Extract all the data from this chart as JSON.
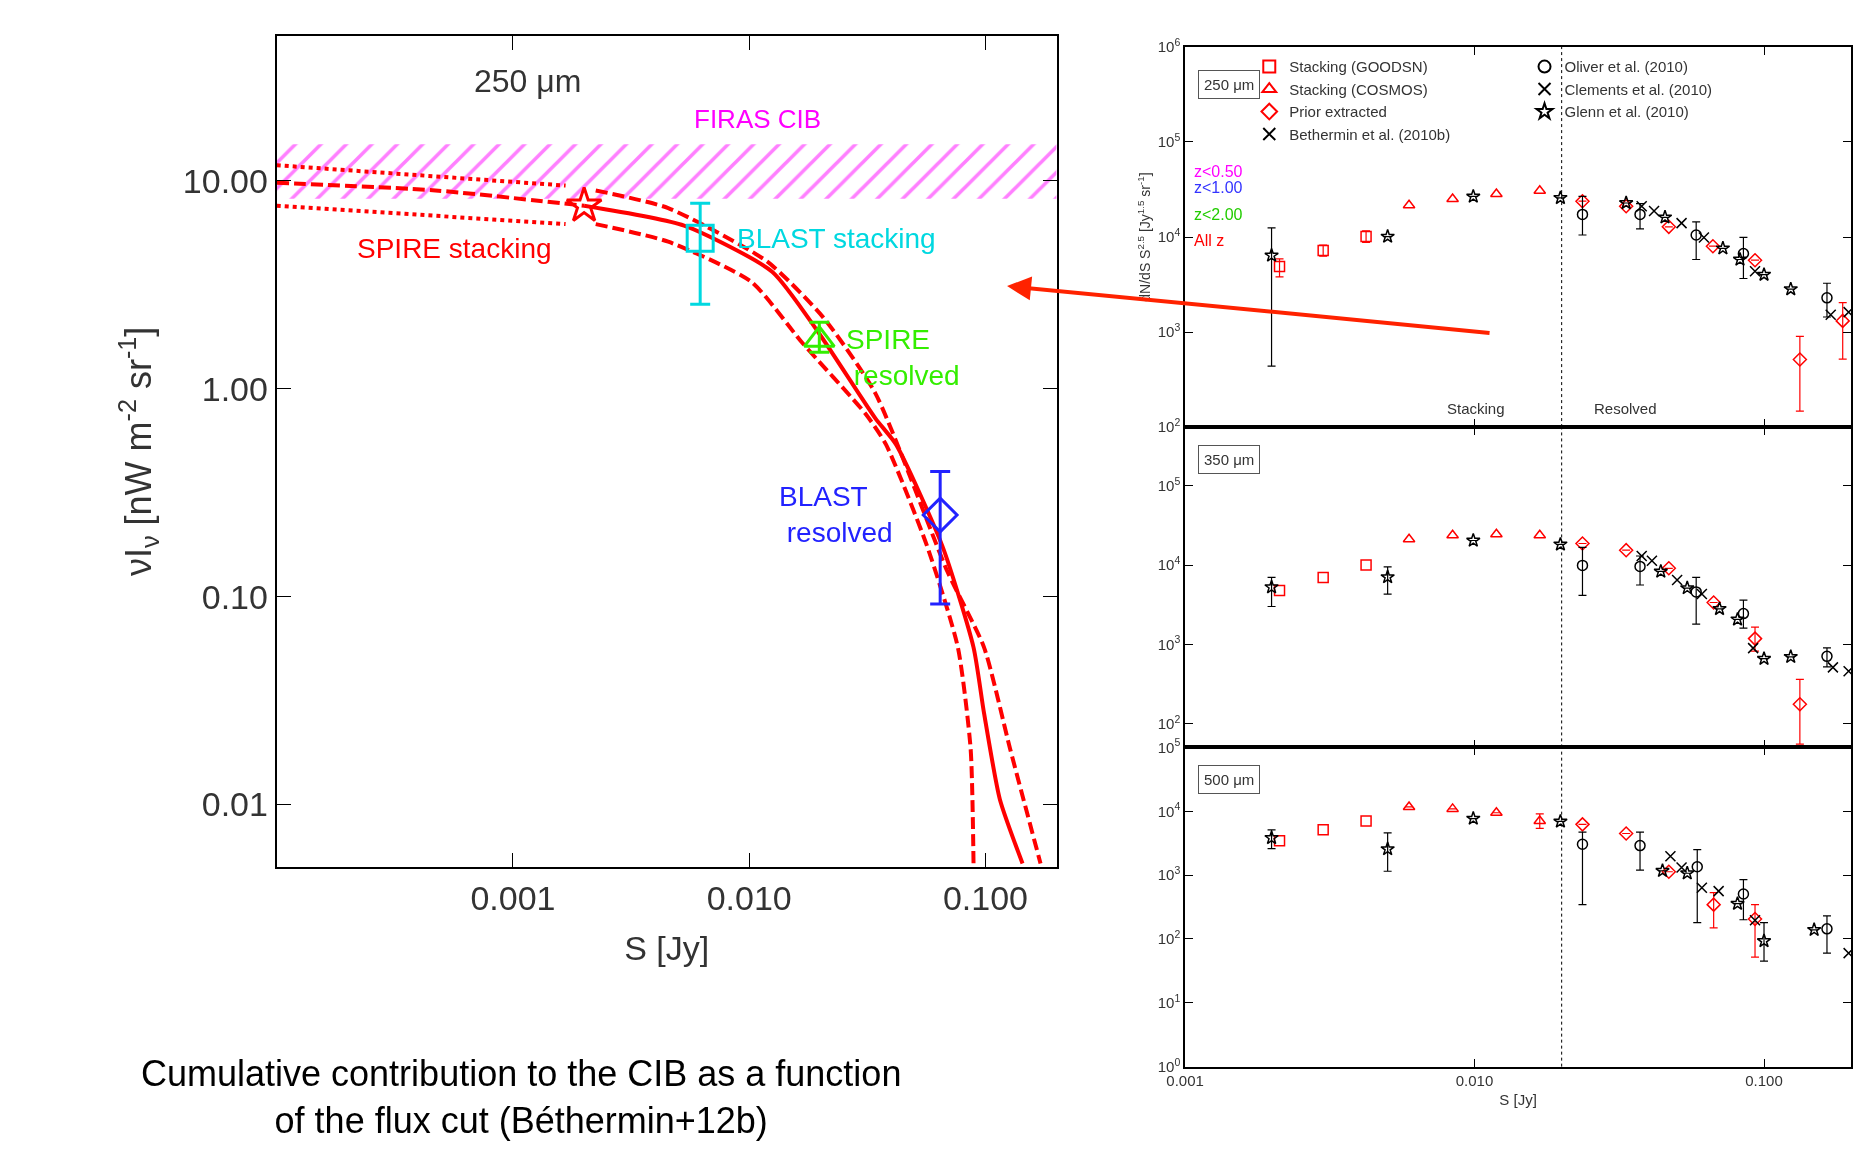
{
  "chart_data": [
    {
      "type": "scatter",
      "xlabel": "S [Jy]",
      "ylabel": "νI$_{ν}$ [nW m$^{-2}$ sr$^{-1}$]",
      "log": "xy",
      "xlim": [
        0.0001,
        0.2
      ],
      "ylim": [
        0.005,
        50
      ],
      "xticks": [
        {
          "value": 0.001,
          "label": "0.001"
        },
        {
          "value": 0.01,
          "label": "0.010"
        },
        {
          "value": 0.1,
          "label": "0.100"
        }
      ],
      "yticks": [
        {
          "value": 0.01,
          "label": "0.01"
        },
        {
          "value": 0.1,
          "label": "0.10"
        },
        {
          "value": 1,
          "label": "1.00"
        },
        {
          "value": 10,
          "label": "10.00"
        }
      ],
      "bands": [
        {
          "axis": "y",
          "from": 8.2,
          "to": 15,
          "label": "FIRAS CIB",
          "color": "#ff00ff"
        }
      ],
      "annotations": [
        "250 μm",
        "Cumulative contribution to the CIB as a function of the flux cut (Béthermin+12b)"
      ],
      "legend": false,
      "series": [
        {
          "type": "line",
          "color": "#ff0000",
          "line_style": "solid",
          "x": [
            0.002,
            0.0053,
            0.0125,
            0.0196,
            0.0342,
            0.0418,
            0.0657,
            0.089,
            0.0986,
            0.115,
            0.1435
          ],
          "values": [
            7.6,
            6.1,
            3.66,
            1.87,
            0.72,
            0.54,
            0.175,
            0.057,
            0.0275,
            0.0106,
            0.0052
          ]
        },
        {
          "type": "line",
          "color": "#ff0000",
          "line_style": "dashed",
          "x": [
            0.0001,
            0.00047,
            0.002
          ],
          "values": [
            9.8,
            9.0,
            7.6
          ]
        },
        {
          "type": "line",
          "color": "#ff0000",
          "line_style": "dotted",
          "x": [
            0.0001,
            0.00167
          ],
          "values": [
            11.9,
            9.5
          ]
        },
        {
          "type": "line",
          "color": "#ff0000",
          "line_style": "dotted",
          "x": [
            0.0001,
            0.00167
          ],
          "values": [
            7.6,
            6.2
          ]
        },
        {
          "type": "line",
          "color": "#ff0000",
          "line_style": "dashed",
          "x": [
            0.00224,
            0.00454,
            0.0119,
            0.0206,
            0.0342,
            0.069,
            0.0986,
            0.127,
            0.171
          ],
          "values": [
            9.0,
            7.4,
            4.1,
            2.2,
            0.95,
            0.132,
            0.057,
            0.0186,
            0.0052
          ]
        },
        {
          "type": "line",
          "color": "#ff0000",
          "line_style": "dashed",
          "x": [
            0.00224,
            0.00454,
            0.0102,
            0.0168,
            0.031,
            0.0379,
            0.0566,
            0.0764,
            0.0865,
            0.089
          ],
          "values": [
            6.2,
            5.1,
            3.27,
            1.66,
            0.76,
            0.54,
            0.175,
            0.057,
            0.0186,
            0.0052
          ]
        },
        {
          "name": "SPIRE stacking",
          "marker": "star",
          "color": "#ff0000",
          "x": [
            0.002
          ],
          "values": [
            7.6
          ]
        },
        {
          "name": "BLAST stacking",
          "marker": "square",
          "color": "#00d8e0",
          "x": [
            0.0062
          ],
          "values": [
            5.3
          ],
          "errors": [
            [
              2.55,
              7.8
            ]
          ]
        },
        {
          "name": "SPIRE resolved",
          "marker": "triangle",
          "color": "#33ee00",
          "x": [
            0.0198
          ],
          "values": [
            1.72
          ],
          "errors": [
            [
              1.5,
              2.09
            ]
          ]
        },
        {
          "name": "BLAST resolved",
          "marker": "diamond",
          "color": "#2222ff",
          "x": [
            0.0643
          ],
          "values": [
            0.247
          ],
          "errors": [
            [
              0.092,
              0.4
            ]
          ]
        }
      ]
    },
    {
      "type": "scatter",
      "ylabel": "dN/dS S$^{2.5}$ [Jy$^{1.5}$ sr$^{-1}$]",
      "log": "xy",
      "xlim": [
        0.001,
        0.2
      ],
      "ylim": [
        100,
        1000000
      ],
      "tick_labels": "y",
      "xticks": [
        {
          "value": 0.001,
          "label": null
        },
        {
          "value": 0.01,
          "label": null
        },
        {
          "value": 0.1,
          "label": null
        }
      ],
      "yticks": [
        {
          "value": 100,
          "label": "10$^{2}$"
        },
        {
          "value": 1000,
          "label": "10$^{3}$"
        },
        {
          "value": 10000,
          "label": "10$^{4}$"
        },
        {
          "value": 100000,
          "label": "10$^{5}$"
        },
        {
          "value": 1000000,
          "label": "10$^{6}$"
        }
      ],
      "ref_lines": [
        {
          "axis": "x",
          "value": 0.02,
          "line_style": "dotted",
          "color": "#000000"
        }
      ],
      "annotations": [
        "250 μm",
        "Stacking",
        "Resolved"
      ],
      "legend": "top",
      "series": [
        {
          "name": "Stacking (GOODSN)",
          "marker": "square",
          "color": "#ff0000",
          "x": [
            0.00212,
            0.003,
            0.00422
          ],
          "values": [
            4900,
            7200,
            10100
          ],
          "errors": [
            [
              3800,
              5900
            ],
            [
              6300,
              8200
            ],
            [
              8800,
              11600
            ]
          ]
        },
        {
          "name": "Stacking (COSMOS)",
          "marker": "triangle",
          "color": "#ff0000",
          "x": [
            0.00594,
            0.0084,
            0.0119,
            0.0168
          ],
          "values": [
            21600,
            25100,
            28300,
            30700
          ]
        },
        {
          "name": "Prior extracted",
          "marker": "diamond",
          "color": "#ff0000",
          "x": [
            0.0236,
            0.0334,
            0.0469,
            0.0666,
            0.0931,
            0.133,
            0.187
          ],
          "values": [
            23800,
            21100,
            12800,
            8000,
            5700,
            514,
            1310
          ],
          "errors": [
            null,
            null,
            null,
            null,
            null,
            [
              147,
              900
            ],
            [
              520,
              2040
            ]
          ]
        },
        {
          "name": "Bethermin et al. (2010b)",
          "marker": "cross",
          "color": "#000000"
        },
        {
          "name": "Oliver et al. (2010)",
          "marker": "circle",
          "color": "#000000",
          "x": [
            0.0236,
            0.0373,
            0.0583,
            0.0849,
            0.165
          ],
          "values": [
            17300,
            17300,
            10500,
            6700,
            2290
          ],
          "errors": [
            [
              10500,
              26700
            ],
            [
              12200,
              22400
            ],
            [
              5800,
              14400
            ],
            [
              3660,
              9900
            ],
            [
              1440,
              3260
            ]
          ]
        },
        {
          "name": "Clements et al. (2010)",
          "marker": "cross",
          "color": "#000000",
          "x": [
            0.0378,
            0.0417,
            0.0519,
            0.062,
            0.0931,
            0.17,
            0.196
          ],
          "values": [
            21100,
            18800,
            14000,
            9900,
            4370,
            1520,
            1620
          ]
        },
        {
          "name": "Glenn et al. (2010)",
          "marker": "star",
          "color": "#000000",
          "x": [
            0.00199,
            0.00501,
            0.0099,
            0.0198,
            0.0334,
            0.0455,
            0.0721,
            0.0826,
            0.1,
            0.1237
          ],
          "values": [
            6400,
            10100,
            26700,
            25800,
            22800,
            16100,
            7600,
            5800,
            4020,
            2830
          ],
          "errors": [
            [
              437,
              12500
            ],
            null,
            null,
            null,
            null,
            null,
            null,
            null,
            null,
            null
          ]
        },
        {
          "name": "z<0.50",
          "color": "#ff00ff"
        },
        {
          "name": "z<1.00",
          "color": "#3333ff"
        },
        {
          "name": "z<2.00",
          "color": "#22cc00"
        },
        {
          "name": "All z",
          "color": "#ff0000"
        }
      ]
    },
    {
      "type": "scatter",
      "log": "xy",
      "xlim": [
        0.001,
        0.2
      ],
      "ylim": [
        50,
        550000
      ],
      "tick_labels": "y",
      "xticks": [
        {
          "value": 0.001,
          "label": null
        },
        {
          "value": 0.01,
          "label": null
        },
        {
          "value": 0.1,
          "label": null
        }
      ],
      "yticks": [
        {
          "value": 100,
          "label": "10$^{2}$"
        },
        {
          "value": 1000,
          "label": "10$^{3}$"
        },
        {
          "value": 10000,
          "label": "10$^{4}$"
        },
        {
          "value": 100000,
          "label": "10$^{5}$"
        }
      ],
      "ref_lines": [
        {
          "axis": "x",
          "value": 0.02,
          "line_style": "dotted",
          "color": "#000000"
        }
      ],
      "annotations": [
        "350 μm"
      ],
      "series": [
        {
          "marker": "square",
          "color": "#ff0000",
          "x": [
            0.00212,
            0.003,
            0.00422
          ],
          "values": [
            4780,
            6950,
            10000
          ]
        },
        {
          "marker": "triangle",
          "color": "#ff0000",
          "x": [
            0.00594,
            0.0084,
            0.0119,
            0.0168
          ],
          "values": [
            21200,
            23800,
            24400,
            23800
          ]
        },
        {
          "marker": "diamond",
          "color": "#ff0000",
          "x": [
            0.0236,
            0.0334,
            0.0469,
            0.067,
            0.0931,
            0.133
          ],
          "values": [
            18700,
            15400,
            9100,
            3370,
            1180,
            175
          ],
          "errors": [
            null,
            null,
            null,
            null,
            [
              820,
              1650
            ],
            [
              55,
              361
            ]
          ]
        },
        {
          "marker": "circle",
          "color": "#000000",
          "x": [
            0.0236,
            0.0373,
            0.0583,
            0.0849,
            0.165
          ],
          "values": [
            9900,
            9600,
            4580,
            2440,
            705
          ],
          "errors": [
            [
              4150,
              16700
            ],
            [
              5600,
              13000
            ],
            [
              1800,
              7000
            ],
            [
              1600,
              3600
            ],
            [
              520,
              900
            ]
          ]
        },
        {
          "marker": "cross",
          "color": "#000000",
          "x": [
            0.0378,
            0.041,
            0.0501,
            0.061,
            0.0917,
            0.173,
            0.196
          ],
          "values": [
            13000,
            11300,
            6490,
            4320,
            895,
            512,
            458
          ]
        },
        {
          "marker": "star",
          "color": "#000000",
          "x": [
            0.00199,
            0.00501,
            0.0099,
            0.0198,
            0.044,
            0.0543,
            0.0702,
            0.081,
            0.1,
            0.1237
          ],
          "values": [
            5260,
            7050,
            20400,
            18200,
            8300,
            5120,
            2800,
            2060,
            658,
            695
          ],
          "errors": [
            [
              3000,
              7000
            ],
            [
              4300,
              9500
            ],
            null,
            null,
            null,
            null,
            null,
            null,
            null,
            null
          ]
        }
      ]
    },
    {
      "type": "scatter",
      "xlabel": "S [Jy]",
      "log": "xy",
      "xlim": [
        0.001,
        0.2
      ],
      "ylim": [
        1,
        100000
      ],
      "xticks": [
        {
          "value": 0.001,
          "label": "0.001"
        },
        {
          "value": 0.01,
          "label": "0.010"
        },
        {
          "value": 0.1,
          "label": "0.100"
        }
      ],
      "yticks": [
        {
          "value": 1,
          "label": "10$^{0}$"
        },
        {
          "value": 10,
          "label": "10$^{1}$"
        },
        {
          "value": 100,
          "label": "10$^{2}$"
        },
        {
          "value": 1000,
          "label": "10$^{3}$"
        },
        {
          "value": 10000,
          "label": "10$^{4}$"
        },
        {
          "value": 100000,
          "label": "10$^{5}$"
        }
      ],
      "ref_lines": [
        {
          "axis": "x",
          "value": 0.02,
          "line_style": "dotted",
          "color": "#000000"
        }
      ],
      "annotations": [
        "500 μm"
      ],
      "series": [
        {
          "marker": "square",
          "color": "#ff0000",
          "x": [
            0.00212,
            0.003,
            0.00422
          ],
          "values": [
            3450,
            5150,
            7050
          ]
        },
        {
          "marker": "triangle",
          "color": "#ff0000",
          "x": [
            0.00594,
            0.0084,
            0.0119,
            0.0168
          ],
          "values": [
            11700,
            10900,
            9490,
            7050
          ],
          "errors": [
            null,
            null,
            null,
            [
              5400,
              9100
            ]
          ]
        },
        {
          "marker": "diamond",
          "color": "#ff0000",
          "x": [
            0.0236,
            0.0334,
            0.0469,
            0.067,
            0.0931
          ],
          "values": [
            6240,
            4490,
            1130,
            345,
            205
          ],
          "errors": [
            null,
            null,
            null,
            [
              149,
              533
            ],
            [
              52,
              345
            ]
          ]
        },
        {
          "marker": "circle",
          "color": "#000000",
          "x": [
            0.0236,
            0.0373,
            0.0588,
            0.0849,
            0.165
          ],
          "values": [
            3050,
            2900,
            1350,
            507,
            144
          ],
          "errors": [
            [
              345,
              4720
            ],
            [
              1200,
              4700
            ],
            [
              180,
              2500
            ],
            [
              200,
              850
            ],
            [
              60,
              230
            ]
          ]
        },
        {
          "marker": "cross",
          "color": "#000000",
          "x": [
            0.0475,
            0.0519,
            0.061,
            0.0697,
            0.0931,
            0.196
          ],
          "values": [
            1970,
            1320,
            635,
            562,
            197,
            60
          ]
        },
        {
          "marker": "star",
          "color": "#000000",
          "x": [
            0.00199,
            0.00501,
            0.0099,
            0.0198,
            0.0446,
            0.0543,
            0.081,
            0.1,
            0.149
          ],
          "values": [
            3830,
            2560,
            7690,
            6930,
            1170,
            1070,
            357,
            93,
            139
          ],
          "errors": [
            [
              2600,
              5100
            ],
            [
              1150,
              4600
            ],
            null,
            null,
            null,
            null,
            null,
            [
              45,
              180
            ],
            null
          ]
        }
      ]
    }
  ]
}
